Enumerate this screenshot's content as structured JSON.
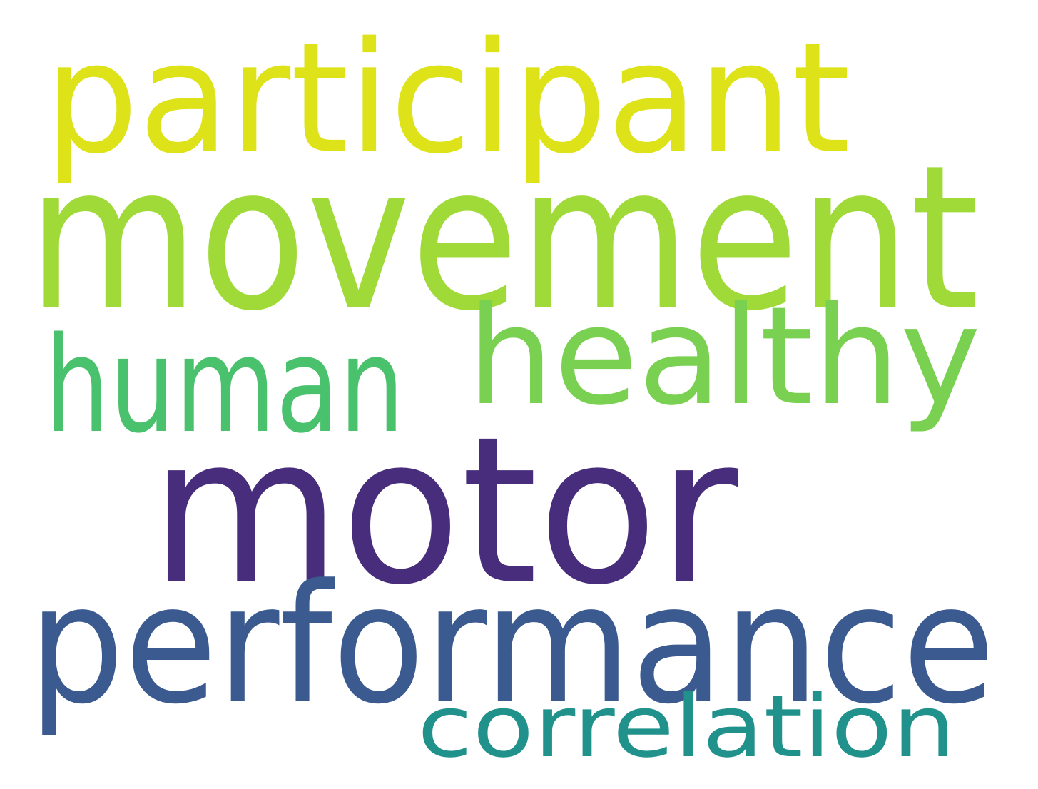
{
  "word_cloud": {
    "words": [
      {
        "text": "participant",
        "color": "#dde318"
      },
      {
        "text": "movement",
        "color": "#a0da39"
      },
      {
        "text": "healthy",
        "color": "#7ad151"
      },
      {
        "text": "human",
        "color": "#4ac16d"
      },
      {
        "text": "motor",
        "color": "#472d7b"
      },
      {
        "text": "performance",
        "color": "#3b5a8f"
      },
      {
        "text": "correlation",
        "color": "#21918c"
      }
    ]
  }
}
